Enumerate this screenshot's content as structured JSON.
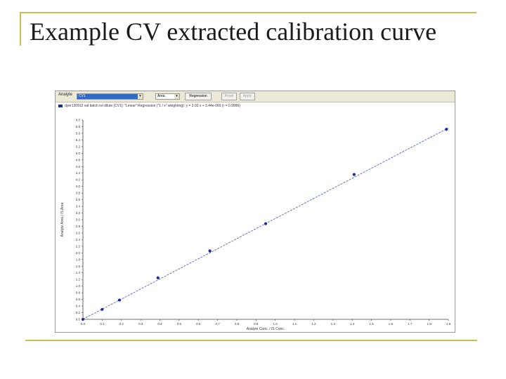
{
  "slide": {
    "title": "Example CV extracted calibration curve",
    "accent_color": "#c9bf52"
  },
  "toolbar": {
    "analyte_label": "Analyte",
    "analyte_value": "CV1",
    "quant_value": "Area",
    "regression_label": "Regression",
    "reset_label": "Reset",
    "apply_label": "Apply",
    "dropdown_icon": "chevron-down-icon"
  },
  "legend": {
    "text": "dyer130912 val batch rel dilute (CV1): \"Linear\" Regression (\"1 / x\" weighting): y = 3.03 x + 3.44e-003 (r = 0.9996)",
    "color": "#1f2a99"
  },
  "chart_data": {
    "type": "scatter",
    "xlabel": "Analyte Conc. / IS Conc.",
    "ylabel": "Analyte Area / IS Area",
    "xlim": [
      0.0,
      1.9
    ],
    "ylim": [
      0.0,
      6.0
    ],
    "xticks": [
      "0.0",
      "0.1",
      "0.2",
      "0.3",
      "0.4",
      "0.5",
      "0.6",
      "0.7",
      "0.8",
      "0.9",
      "1.0",
      "1.1",
      "1.2",
      "1.3",
      "1.4",
      "1.5",
      "1.6",
      "1.7",
      "1.8",
      "1.9"
    ],
    "yticks": [
      "0.0",
      "0.2",
      "0.4",
      "0.6",
      "0.8",
      "1.0",
      "1.2",
      "1.4",
      "1.6",
      "1.8",
      "2.0",
      "2.2",
      "2.4",
      "2.6",
      "2.8",
      "3.0",
      "3.2",
      "3.4",
      "3.6",
      "3.8",
      "4.0",
      "4.2",
      "4.4",
      "4.6",
      "4.8",
      "5.0",
      "5.2",
      "5.4",
      "5.6",
      "5.8",
      "6.0"
    ],
    "points": [
      {
        "x": 0.0,
        "y": 0.0
      },
      {
        "x": 0.1,
        "y": 0.3
      },
      {
        "x": 0.19,
        "y": 0.58
      },
      {
        "x": 0.39,
        "y": 1.25
      },
      {
        "x": 0.66,
        "y": 2.06
      },
      {
        "x": 0.95,
        "y": 2.88
      },
      {
        "x": 1.41,
        "y": 4.36
      },
      {
        "x": 1.89,
        "y": 5.72
      }
    ],
    "fit": {
      "slope": 3.03,
      "intercept": 0.00344
    },
    "point_color": "#1f2a99",
    "line_color": "#5566c4",
    "grid": false,
    "legend_position": "top-left"
  }
}
